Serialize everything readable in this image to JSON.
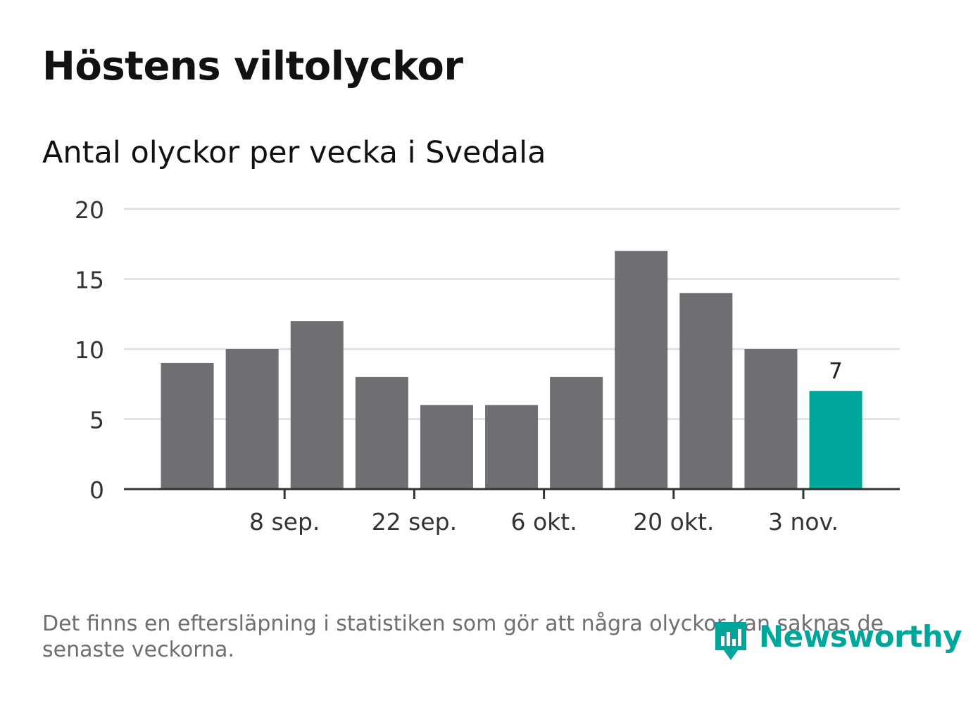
{
  "title": "Höstens viltolyckor",
  "subtitle": "Antal olyckor per vecka i Svedala",
  "footnote": "Det finns en eftersläpning i statistiken som gör att några olyckor kan saknas de senaste veckorna.",
  "brand": {
    "name": "Newsworthy",
    "icon": "newsworthy-logo-icon",
    "color": "#00a69a"
  },
  "colors": {
    "bar": "#6f6e73",
    "highlight": "#00a69a",
    "grid": "#dddddd",
    "axis": "#333333"
  },
  "chart_data": {
    "type": "bar",
    "weeks": [
      "",
      "8 sep.",
      "",
      "22 sep.",
      "",
      "6 okt.",
      "",
      "20 okt.",
      "",
      "3 nov.",
      ""
    ],
    "values": [
      9,
      10,
      12,
      8,
      6,
      6,
      8,
      17,
      14,
      10,
      7
    ],
    "highlight_index": 10,
    "highlight_label": "7",
    "ylim": [
      0,
      20
    ],
    "yticks": [
      "0",
      "5",
      "10",
      "15",
      "20"
    ],
    "xtick_labels": [
      "8 sep.",
      "22 sep.",
      "6 okt.",
      "20 okt.",
      "3 nov."
    ],
    "grid": true,
    "legend": "none"
  }
}
